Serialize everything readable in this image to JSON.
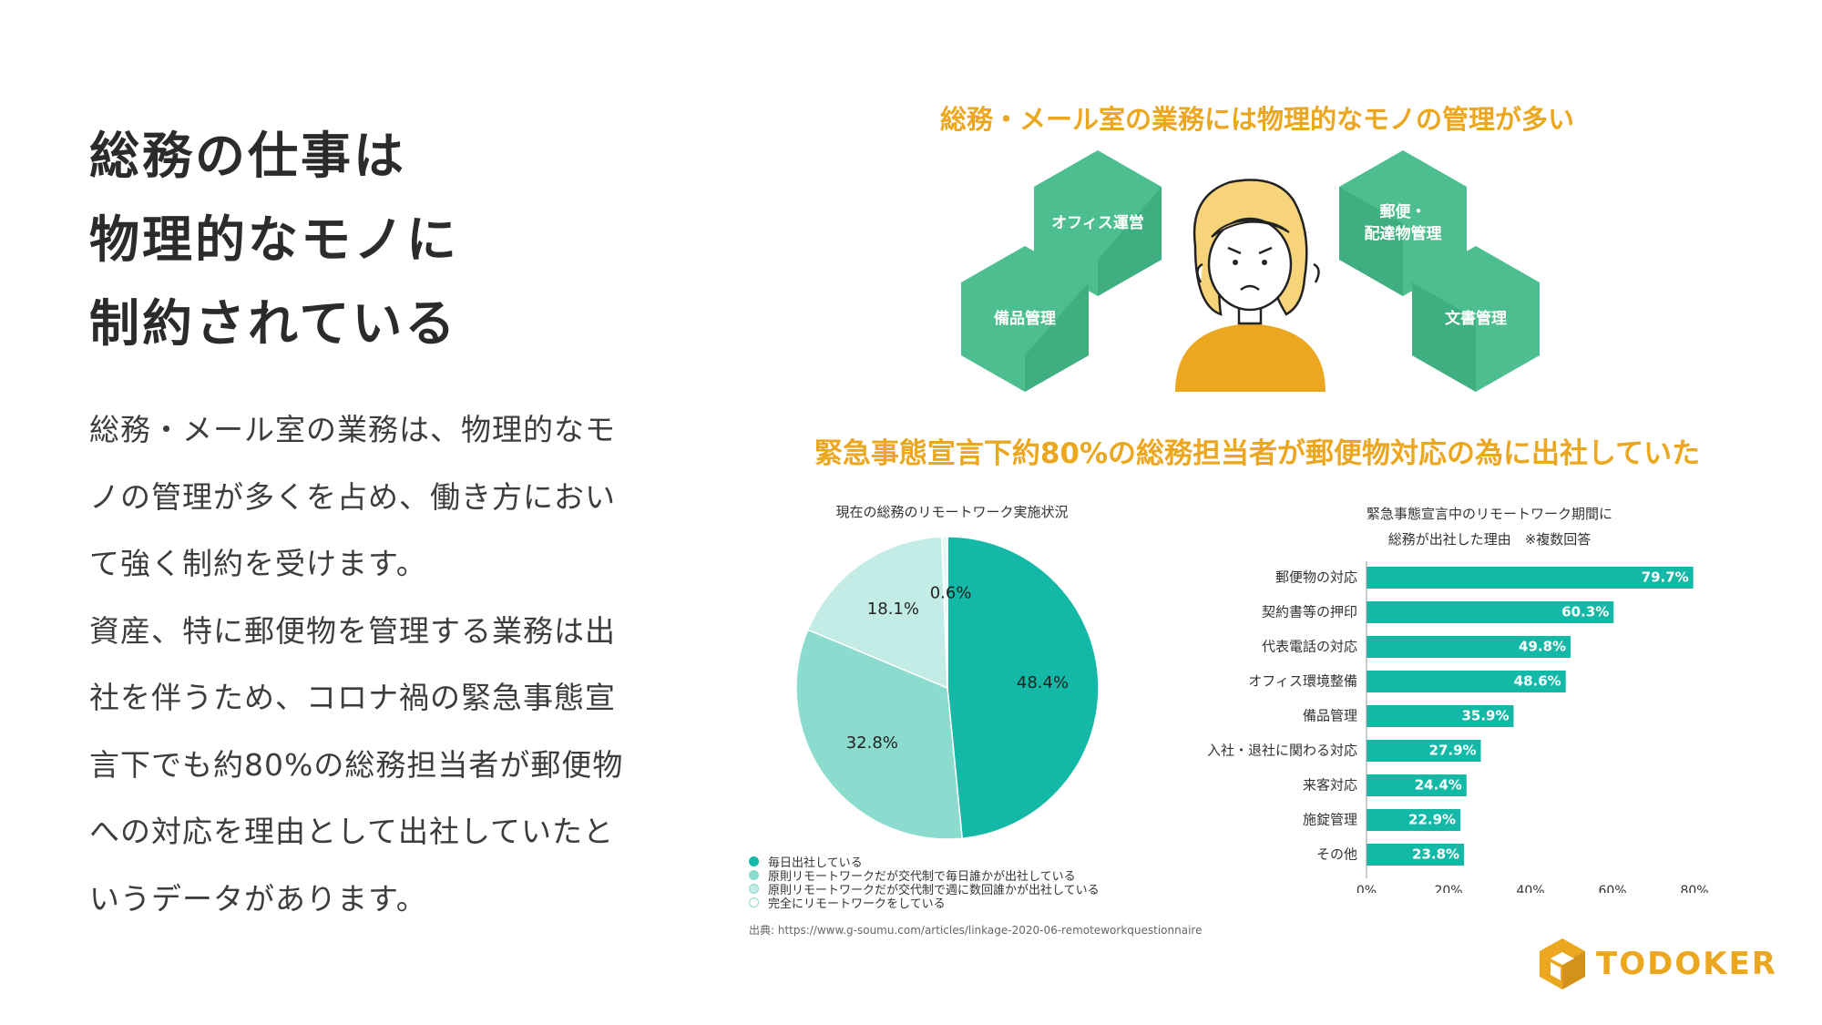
{
  "left": {
    "heading_lines": [
      "総務の仕事は",
      "物理的なモノに",
      "制約されている"
    ],
    "body_lines": [
      "総務・メール室の業務は、物理的なモ",
      "ノの管理が多くを占め、働き方におい",
      "て強く制約を受けます。",
      "資産、特に郵便物を管理する業務は出",
      "社を伴うため、コロナ禍の緊急事態宣",
      "言下でも約80%の総務担当者が郵便物",
      "への対応を理由として出社していたと",
      "いうデータがあります。"
    ]
  },
  "illustration": {
    "title": "総務・メール室の業務には物理的なモノの管理が多い",
    "cubes": {
      "office": "オフィス運営",
      "equipment": "備品管理",
      "mail_line1": "郵便・",
      "mail_line2": "配達物管理",
      "docs": "文書管理"
    },
    "colors": {
      "cube": "#4cbe8f",
      "cube_dark": "#3fae80",
      "accent": "#eba71f"
    }
  },
  "stats_title": "緊急事態宣言下約80%の総務担当者が郵便物対応の為に出社していた",
  "chart_data": [
    {
      "type": "pie",
      "title": "現在の総務のリモートワーク実施状況",
      "categories": [
        "毎日出社している",
        "原則リモートワークだが交代制で毎日誰かが出社している",
        "原則リモートワークだが交代制で週に数回誰かが出社している",
        "完全にリモートワークをしている"
      ],
      "values": [
        48.4,
        32.8,
        18.1,
        0.6
      ],
      "labels": [
        "48.4%",
        "32.8%",
        "18.1%",
        "0.6%"
      ],
      "colors": [
        "#14b8a6",
        "#8bdbcf",
        "#c4ece6",
        "#e6f7f4"
      ],
      "legend": "bottom-left"
    },
    {
      "type": "bar",
      "orientation": "horizontal",
      "title_lines": [
        "緊急事態宣言中のリモートワーク期間に",
        "総務が出社した理由　※複数回答"
      ],
      "categories": [
        "郵便物の対応",
        "契約書等の押印",
        "代表電話の対応",
        "オフィス環境整備",
        "備品管理",
        "入社・退社に関わる対応",
        "来客対応",
        "施錠管理",
        "その他"
      ],
      "values": [
        79.7,
        60.3,
        49.8,
        48.6,
        35.9,
        27.9,
        24.4,
        22.9,
        23.8
      ],
      "labels": [
        "79.7%",
        "60.3%",
        "49.8%",
        "48.6%",
        "35.9%",
        "27.9%",
        "24.4%",
        "22.9%",
        "23.8%"
      ],
      "xlim": [
        0,
        80
      ],
      "xticks": [
        "0%",
        "20%",
        "40%",
        "60%",
        "80%"
      ],
      "color": "#14b8a6"
    }
  ],
  "source": "出典: https://www.g-soumu.com/articles/linkage-2020-06-remoteworkquestionnaire",
  "logo": {
    "text": "TODOKER",
    "color": "#eba71f"
  }
}
